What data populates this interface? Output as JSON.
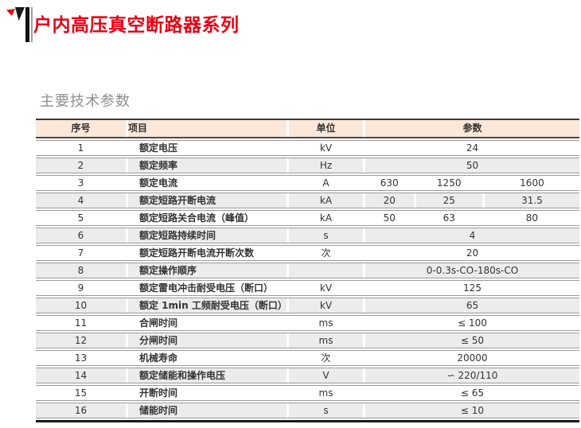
{
  "header": {
    "title": "户内高压真空断路器系列"
  },
  "section": {
    "title": "主要技术参数"
  },
  "colors": {
    "accent_red": "#e60012",
    "table_header_bg": "#fbe8d8",
    "row_alt_bg": "#ececec",
    "row_line": "#9b9b9b",
    "rule_dark": "#3a3a3a",
    "text": "#333333"
  },
  "icons": {
    "brand_mark": "red-black-triangle-bars-logo"
  },
  "table": {
    "columns": [
      "序号",
      "项目",
      "单位",
      "参数"
    ],
    "rows": [
      {
        "no": "1",
        "item": "额定电压",
        "unit": "kV",
        "values": [
          "24"
        ]
      },
      {
        "no": "2",
        "item": "额定频率",
        "unit": "Hz",
        "values": [
          "50"
        ]
      },
      {
        "no": "3",
        "item": "额定电流",
        "unit": "A",
        "values": [
          "630",
          "1250",
          "1600"
        ]
      },
      {
        "no": "4",
        "item": "额定短路开断电流",
        "unit": "kA",
        "values": [
          "20",
          "25",
          "31.5"
        ]
      },
      {
        "no": "5",
        "item": "额定短路关合电流（峰值）",
        "unit": "kA",
        "values": [
          "50",
          "63",
          "80"
        ]
      },
      {
        "no": "6",
        "item": "额定短路持续时间",
        "unit": "s",
        "values": [
          "4"
        ]
      },
      {
        "no": "7",
        "item": "额定短路开断电流开断次数",
        "unit": "次",
        "values": [
          "20"
        ]
      },
      {
        "no": "8",
        "item": "额定操作顺序",
        "unit": "",
        "values": [
          "0-0.3s-CO-180s-CO"
        ]
      },
      {
        "no": "9",
        "item": "额定雷电冲击耐受电压（断口）",
        "unit": "kV",
        "values": [
          "125"
        ]
      },
      {
        "no": "10",
        "item": "额定 1min 工频耐受电压（断口）",
        "unit": "kV",
        "values": [
          "65"
        ]
      },
      {
        "no": "11",
        "item": "合闸时间",
        "unit": "ms",
        "values": [
          "≤ 100"
        ]
      },
      {
        "no": "12",
        "item": "分闸时间",
        "unit": "ms",
        "values": [
          "≤ 50"
        ]
      },
      {
        "no": "13",
        "item": "机械寿命",
        "unit": "次",
        "values": [
          "20000"
        ]
      },
      {
        "no": "14",
        "item": "额定储能和操作电压",
        "unit": "V",
        "values": [
          "∽ 220/110"
        ]
      },
      {
        "no": "15",
        "item": "开断时间",
        "unit": "ms",
        "values": [
          "≤ 65"
        ]
      },
      {
        "no": "16",
        "item": "储能时间",
        "unit": "s",
        "values": [
          "≤ 10"
        ]
      }
    ]
  }
}
